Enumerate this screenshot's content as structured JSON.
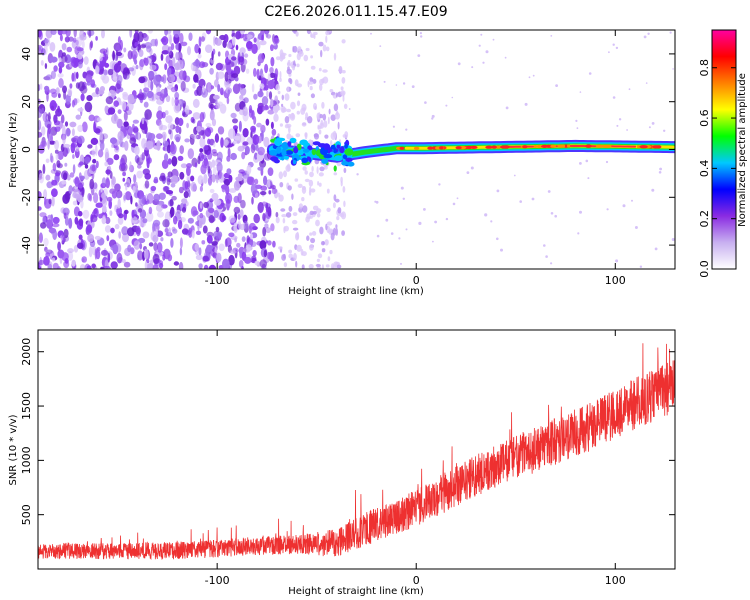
{
  "figure_title": "C2E6.2026.011.15.47.E09",
  "chart_data": [
    {
      "type": "heatmap",
      "name": "spectrogram",
      "xlabel": "Height of straight line (km)",
      "ylabel": "Frequency (Hz)",
      "xlim": [
        -190,
        130
      ],
      "ylim": [
        -50,
        50
      ],
      "x_ticks": [
        -100,
        0,
        100
      ],
      "y_ticks": [
        -40,
        -20,
        0,
        20,
        40
      ],
      "colorbar": {
        "label": "Normalized spectral amplitude",
        "range": [
          0,
          0.95
        ],
        "ticks": [
          0.0,
          0.2,
          0.4,
          0.6,
          0.8
        ],
        "colors": [
          "#ffffff",
          "#c8b0f0",
          "#8a2be2",
          "#0000ff",
          "#00c8ff",
          "#00ff00",
          "#ffff00",
          "#ff8000",
          "#ff0000",
          "#ff00a0"
        ]
      },
      "noise_region_x": [
        -190,
        -70
      ],
      "sparse_noise_x": [
        -70,
        -35
      ],
      "signal_centerline": [
        {
          "x": -72,
          "f": 0.0
        },
        {
          "x": -55,
          "f": -1.5
        },
        {
          "x": -40,
          "f": -3.0
        },
        {
          "x": -25,
          "f": -1.0
        },
        {
          "x": -10,
          "f": 0.5
        },
        {
          "x": 0,
          "f": 0.5
        },
        {
          "x": 40,
          "f": 1.0
        },
        {
          "x": 80,
          "f": 1.5
        },
        {
          "x": 130,
          "f": 1.0
        }
      ]
    },
    {
      "type": "line",
      "name": "snr",
      "xlabel": "Height of straight line (km)",
      "ylabel": "SNR (10 * v/v)",
      "xlim": [
        -190,
        130
      ],
      "ylim": [
        0,
        2200
      ],
      "x_ticks": [
        -100,
        0,
        100
      ],
      "y_ticks": [
        500,
        1000,
        1500,
        2000
      ],
      "color": "#ee3030",
      "trend": [
        {
          "x": -190,
          "y": 160
        },
        {
          "x": -120,
          "y": 170
        },
        {
          "x": -70,
          "y": 220
        },
        {
          "x": -40,
          "y": 240
        },
        {
          "x": -30,
          "y": 330
        },
        {
          "x": 0,
          "y": 560
        },
        {
          "x": 30,
          "y": 860
        },
        {
          "x": 60,
          "y": 1100
        },
        {
          "x": 90,
          "y": 1330
        },
        {
          "x": 110,
          "y": 1520
        },
        {
          "x": 130,
          "y": 1680
        }
      ],
      "spread": [
        {
          "x": -190,
          "y": 140
        },
        {
          "x": -60,
          "y": 180
        },
        {
          "x": -30,
          "y": 300
        },
        {
          "x": 0,
          "y": 350
        },
        {
          "x": 60,
          "y": 420
        },
        {
          "x": 130,
          "y": 500
        }
      ]
    }
  ]
}
